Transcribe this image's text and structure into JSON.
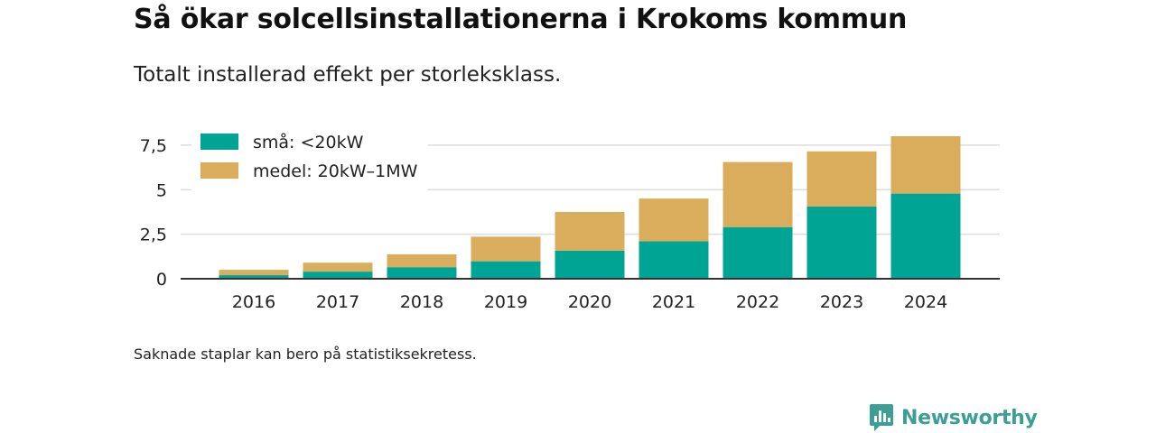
{
  "header": {
    "title": "Så ökar solcellsinstallationerna i Krokoms kommun",
    "subtitle": "Totalt installerad effekt per storleksklass."
  },
  "footer": {
    "note": "Saknade staplar kan bero på statistiksekretess.",
    "brand": "Newsworthy"
  },
  "colors": {
    "small": "#00a495",
    "medium": "#d9ad5b",
    "grid": "#dddddd",
    "axis": "#333333",
    "brand": "#3d9e96"
  },
  "chart_data": {
    "type": "bar",
    "stacked": true,
    "categories": [
      "2016",
      "2017",
      "2018",
      "2019",
      "2020",
      "2021",
      "2022",
      "2023",
      "2024"
    ],
    "series": [
      {
        "name": "små: <20kW",
        "color": "#00a495",
        "values": [
          0.2,
          0.4,
          0.65,
          0.98,
          1.58,
          2.1,
          2.9,
          4.05,
          4.78
        ]
      },
      {
        "name": "medel: 20kW–1MW",
        "color": "#d9ad5b",
        "values": [
          0.3,
          0.5,
          0.72,
          1.38,
          2.17,
          2.4,
          3.65,
          3.1,
          3.22
        ]
      }
    ],
    "yticks": [
      0,
      2.5,
      5,
      7.5
    ],
    "ytick_labels": [
      "0",
      "2,5",
      "5",
      "7,5"
    ],
    "ylim": [
      0,
      8.2
    ],
    "grid": true,
    "legend_position": "top-left",
    "xlabel": "",
    "ylabel": ""
  }
}
